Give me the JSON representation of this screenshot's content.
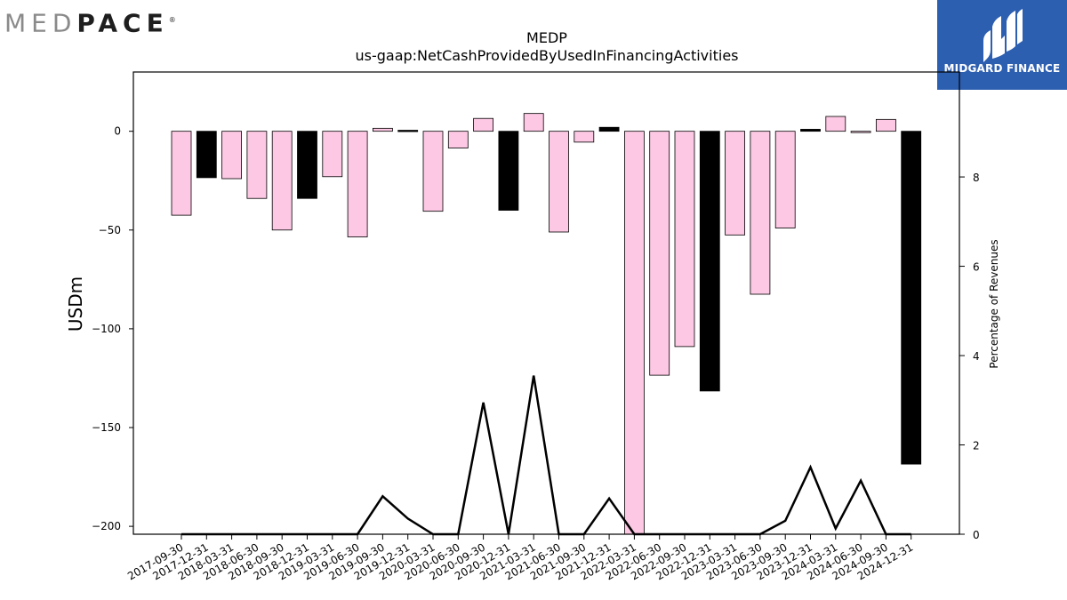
{
  "logo": {
    "part1": "MED",
    "part2": "PACE",
    "mark": "®"
  },
  "brand": {
    "name": "MIDGARD FINANCE",
    "bg_color": "#2d5fb0"
  },
  "chart_data": {
    "type": "bar",
    "title": "MEDP",
    "subtitle": "us-gaap:NetCashProvidedByUsedInFinancingActivities",
    "ylabel": "USDm",
    "y2label": "Percentage of Revenues",
    "ylim": [
      -204,
      30
    ],
    "y2lim": [
      0,
      10.35
    ],
    "yticks": [
      0,
      -50,
      -100,
      -150,
      -200
    ],
    "y2ticks": [
      0,
      2,
      4,
      6,
      8
    ],
    "grid": false,
    "categories": [
      "2017-09-30",
      "2017-12-31",
      "2018-03-31",
      "2018-06-30",
      "2018-09-30",
      "2018-12-31",
      "2019-03-31",
      "2019-06-30",
      "2019-09-30",
      "2019-12-31",
      "2020-03-31",
      "2020-06-30",
      "2020-09-30",
      "2020-12-31",
      "2021-03-31",
      "2021-06-30",
      "2021-09-30",
      "2021-12-31",
      "2022-03-31",
      "2022-06-30",
      "2022-09-30",
      "2022-12-31",
      "2023-03-31",
      "2023-06-30",
      "2023-09-30",
      "2023-12-31",
      "2024-03-31",
      "2024-06-30",
      "2024-09-30",
      "2024-12-31"
    ],
    "series": [
      {
        "kind": "bar",
        "values": [
          -42.5,
          -23.5,
          -24,
          -34,
          -50,
          -34,
          -23,
          -53.5,
          1.5,
          0.5,
          -40.5,
          -8.5,
          6.5,
          -40,
          9,
          -51,
          -5.5,
          2,
          -210,
          -123.5,
          -109,
          -131.5,
          -52.5,
          -82.5,
          -49,
          1,
          7.5,
          0,
          6,
          -168.5
        ],
        "colors": [
          "#fcc8e3",
          "#000000",
          "#fcc8e3",
          "#fcc8e3",
          "#fcc8e3",
          "#000000",
          "#fcc8e3",
          "#fcc8e3",
          "#fcc8e3",
          "#000000",
          "#fcc8e3",
          "#fcc8e3",
          "#fcc8e3",
          "#000000",
          "#fcc8e3",
          "#fcc8e3",
          "#fcc8e3",
          "#000000",
          "#fcc8e3",
          "#fcc8e3",
          "#fcc8e3",
          "#000000",
          "#fcc8e3",
          "#fcc8e3",
          "#fcc8e3",
          "#000000",
          "#fcc8e3",
          "#fcc8e3",
          "#fcc8e3",
          "#000000"
        ]
      },
      {
        "kind": "line",
        "axis": "right",
        "color": "#000000",
        "values": [
          null,
          null,
          null,
          null,
          null,
          null,
          null,
          null,
          0.85,
          0.35,
          null,
          null,
          2.95,
          null,
          3.55,
          null,
          null,
          0.8,
          null,
          null,
          null,
          null,
          null,
          null,
          0.3,
          1.5,
          0.13,
          1.2,
          null,
          null
        ]
      }
    ]
  }
}
